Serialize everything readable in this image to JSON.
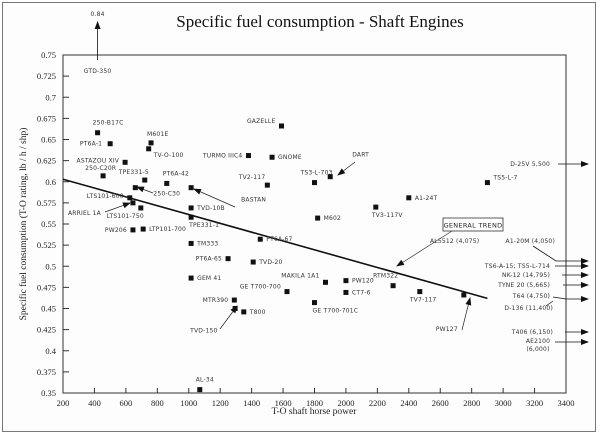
{
  "chart_data": {
    "type": "scatter",
    "title": "Specific fuel consumption - Shaft Engines",
    "xlabel": "T-O shaft horse power",
    "ylabel": "Specific fuel consumption (T-O rating, lb / h / shp)",
    "xlim": [
      200,
      3400
    ],
    "ylim": [
      0.35,
      0.75
    ],
    "xticks": [
      "200",
      "400",
      "600",
      "800",
      "1000",
      "1200",
      "1400",
      "1600",
      "1800",
      "2000",
      "2200",
      "2400",
      "2600",
      "2800",
      "3000",
      "3200",
      "3400"
    ],
    "yticks": [
      "0.35",
      "0.375",
      "0.4",
      "0.425",
      "0.45",
      "0.475",
      "0.5",
      "0.525",
      "0.55",
      "0.575",
      "0.6",
      "0.625",
      "0.65",
      "0.675",
      "0.7",
      "0.725",
      "0.75"
    ],
    "grid": false,
    "points": [
      {
        "label": "250-B17C",
        "x": 420,
        "y": 0.658
      },
      {
        "label": "PT6A-1",
        "x": 500,
        "y": 0.645
      },
      {
        "label": "M601E",
        "x": 760,
        "y": 0.646
      },
      {
        "label": "TV-O-100",
        "x": 745,
        "y": 0.639
      },
      {
        "label": "ASTAZOU XIV",
        "x": 595,
        "y": 0.623
      },
      {
        "label": "250-C20R",
        "x": 455,
        "y": 0.607
      },
      {
        "label": "TPE331-5",
        "x": 720,
        "y": 0.602
      },
      {
        "label": "PT6A-42",
        "x": 860,
        "y": 0.598
      },
      {
        "label": "250-C30",
        "x": 660,
        "y": 0.593
      },
      {
        "label": "BASTAN",
        "x": 1015,
        "y": 0.593
      },
      {
        "label": "LTS101-600",
        "x": 625,
        "y": 0.581
      },
      {
        "label": "ARRIEL 1A",
        "x": 645,
        "y": 0.575
      },
      {
        "label": "LTS101-750",
        "x": 695,
        "y": 0.569
      },
      {
        "label": "TVD-10B",
        "x": 1015,
        "y": 0.569
      },
      {
        "label": "TPE331-1",
        "x": 1015,
        "y": 0.558
      },
      {
        "label": "PW206",
        "x": 645,
        "y": 0.543
      },
      {
        "label": "LTP101-700",
        "x": 710,
        "y": 0.544
      },
      {
        "label": "TM333",
        "x": 1015,
        "y": 0.527
      },
      {
        "label": "PT6A-67",
        "x": 1455,
        "y": 0.532
      },
      {
        "label": "PT6A-65",
        "x": 1250,
        "y": 0.509
      },
      {
        "label": "TVD-20",
        "x": 1410,
        "y": 0.505
      },
      {
        "label": "GEM 41",
        "x": 1015,
        "y": 0.486
      },
      {
        "label": "MTR390",
        "x": 1290,
        "y": 0.46
      },
      {
        "label": "TVD-150",
        "x": 1295,
        "y": 0.45
      },
      {
        "label": "T800",
        "x": 1350,
        "y": 0.446
      },
      {
        "label": "GE T700-700",
        "x": 1625,
        "y": 0.47
      },
      {
        "label": "MAKILA 1A1",
        "x": 1870,
        "y": 0.481
      },
      {
        "label": "PW120",
        "x": 2000,
        "y": 0.483
      },
      {
        "label": "CT7-6",
        "x": 2000,
        "y": 0.469
      },
      {
        "label": "GE T700-701C",
        "x": 1800,
        "y": 0.457
      },
      {
        "label": "RTM322",
        "x": 2300,
        "y": 0.477
      },
      {
        "label": "TV7-117",
        "x": 2470,
        "y": 0.47
      },
      {
        "label": "PW127",
        "x": 2750,
        "y": 0.466
      },
      {
        "label": "GAZELLE",
        "x": 1590,
        "y": 0.666
      },
      {
        "label": "TURMO IIIC4",
        "x": 1380,
        "y": 0.631
      },
      {
        "label": "GNOME",
        "x": 1530,
        "y": 0.629
      },
      {
        "label": "TV2-117",
        "x": 1500,
        "y": 0.596
      },
      {
        "label": "TS3-L-703",
        "x": 1800,
        "y": 0.599
      },
      {
        "label": "DART",
        "x": 1900,
        "y": 0.606
      },
      {
        "label": "M602",
        "x": 1820,
        "y": 0.557
      },
      {
        "label": "TV3-117V",
        "x": 2190,
        "y": 0.57
      },
      {
        "label": "A1-24T",
        "x": 2400,
        "y": 0.581
      },
      {
        "label": "TS5-L-7",
        "x": 2900,
        "y": 0.599
      },
      {
        "label": "AL-34",
        "x": 1070,
        "y": 0.354
      }
    ],
    "offscale_top": {
      "label": "GTD-350",
      "value": "0.84",
      "x": 420
    },
    "offscale_right": [
      {
        "label": "D-25V 5,500",
        "y": 0.621
      },
      {
        "label": "AL5512 (4,075)",
        "y": 0.513
      },
      {
        "label": "A1-20M (4,050)",
        "y": 0.507
      },
      {
        "label": "TS6-A-15; TS5-L-714",
        "y": 0.501
      },
      {
        "label": "NK-12 (14,795)",
        "y": 0.494
      },
      {
        "label": "TYNE 20 (5,665)",
        "y": 0.486
      },
      {
        "label": "T64 (4,750)",
        "y": 0.477
      },
      {
        "label": "D-136 (11,400)",
        "y": 0.477
      },
      {
        "label": "T406 (6,150)",
        "y": 0.45
      },
      {
        "label": "AE2100 (6,000)",
        "y": 0.44
      }
    ],
    "trend": {
      "label": "GENERAL TREND",
      "x": [
        200,
        2900
      ],
      "y": [
        0.603,
        0.462
      ]
    }
  }
}
